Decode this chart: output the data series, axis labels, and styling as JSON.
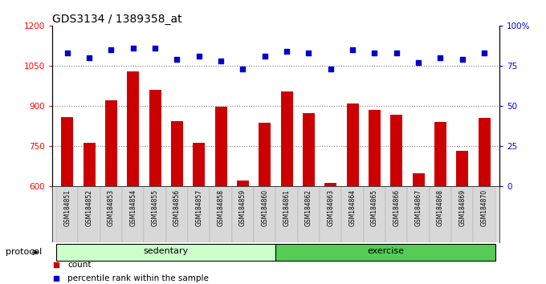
{
  "title": "GDS3134 / 1389358_at",
  "samples": [
    "GSM184851",
    "GSM184852",
    "GSM184853",
    "GSM184854",
    "GSM184855",
    "GSM184856",
    "GSM184857",
    "GSM184858",
    "GSM184859",
    "GSM184860",
    "GSM184861",
    "GSM184862",
    "GSM184863",
    "GSM184864",
    "GSM184865",
    "GSM184866",
    "GSM184867",
    "GSM184868",
    "GSM184869",
    "GSM184870"
  ],
  "counts": [
    858,
    762,
    920,
    1030,
    960,
    843,
    762,
    898,
    622,
    838,
    953,
    872,
    613,
    910,
    886,
    868,
    648,
    840,
    733,
    855
  ],
  "percentile_ranks": [
    83,
    80,
    85,
    86,
    86,
    79,
    81,
    78,
    73,
    81,
    84,
    83,
    73,
    85,
    83,
    83,
    77,
    80,
    79,
    83
  ],
  "bar_color": "#cc0000",
  "dot_color": "#0000cc",
  "bar_bottom": 600,
  "ylim_left": [
    600,
    1200
  ],
  "ylim_right": [
    0,
    100
  ],
  "yticks_left": [
    600,
    750,
    900,
    1050,
    1200
  ],
  "yticks_right": [
    0,
    25,
    50,
    75,
    100
  ],
  "grid_values": [
    750,
    900,
    1050
  ],
  "sedentary_color": "#ccffcc",
  "exercise_color": "#55cc55",
  "title_fontsize": 10,
  "tick_fontsize": 7.5,
  "legend_count": "count",
  "legend_percentile": "percentile rank within the sample"
}
